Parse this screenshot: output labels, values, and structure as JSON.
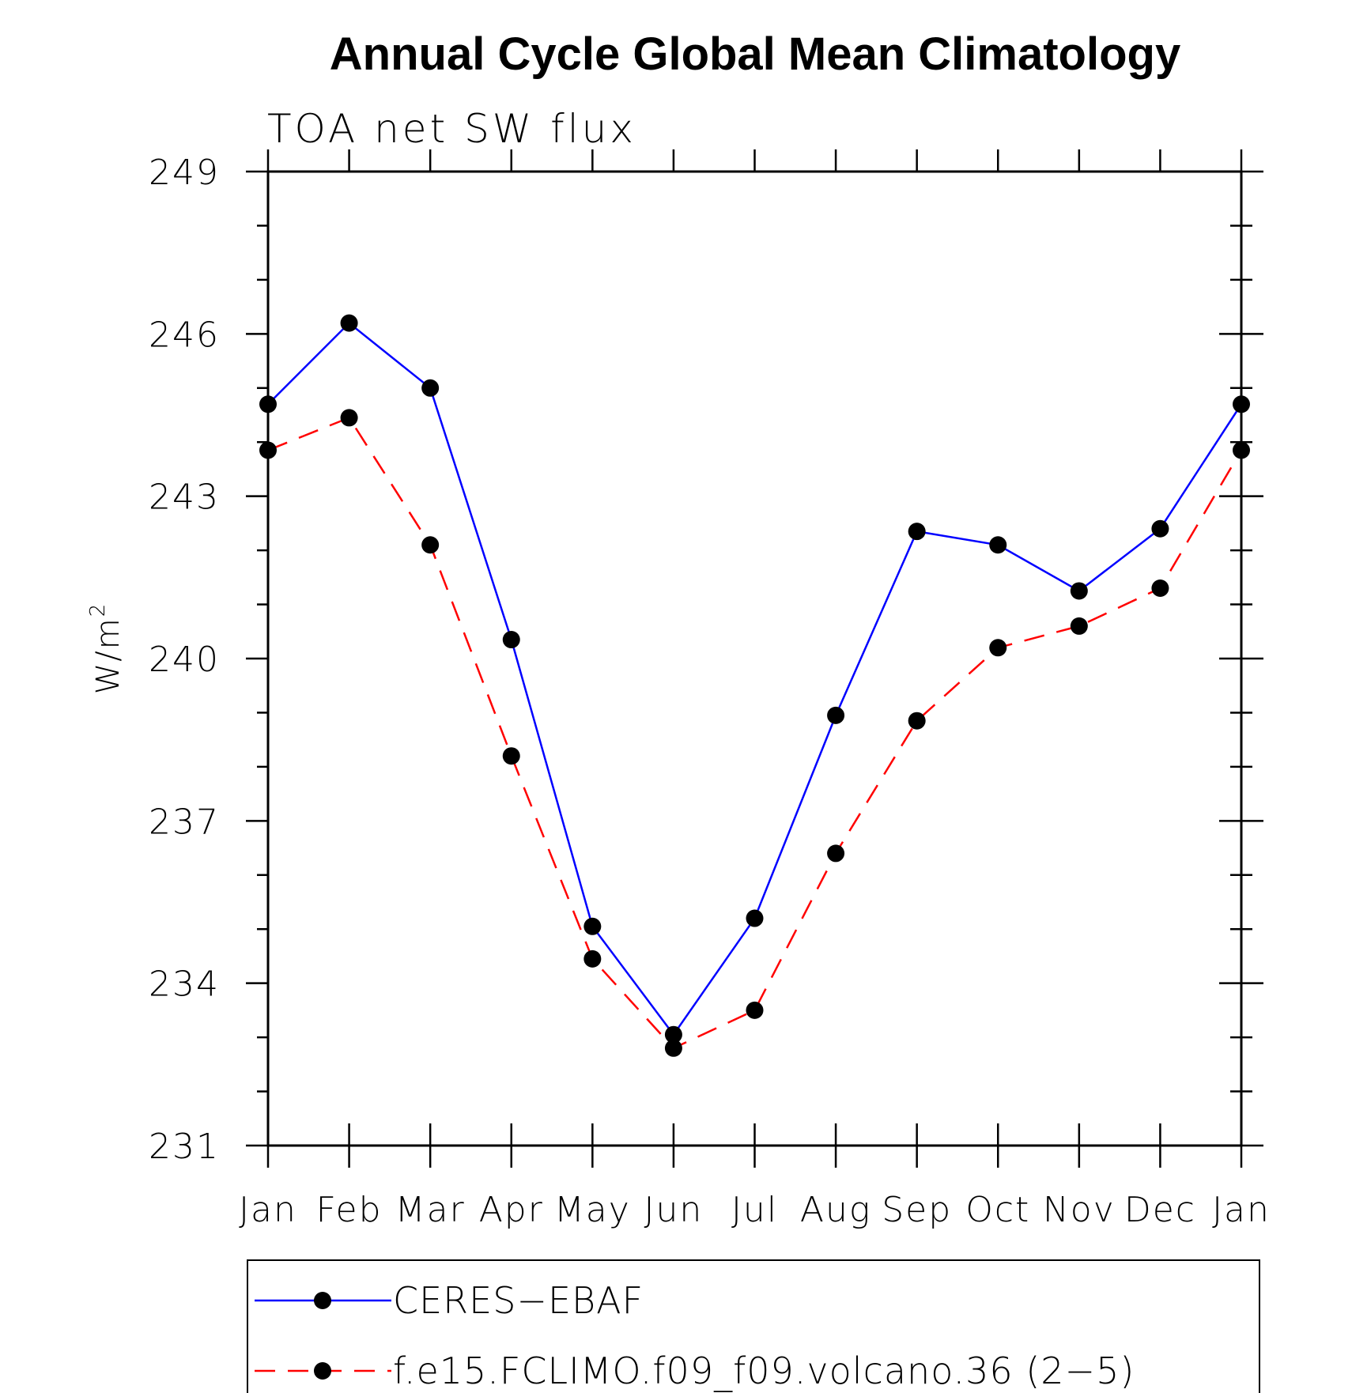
{
  "chart_data": {
    "type": "line",
    "title": "Annual Cycle Global Mean Climatology",
    "subtitle": "TOA net SW flux",
    "xlabel": "",
    "ylabel": "W/m",
    "ylabel_superscript": "2",
    "categories": [
      "Jan",
      "Feb",
      "Mar",
      "Apr",
      "May",
      "Jun",
      "Jul",
      "Aug",
      "Sep",
      "Oct",
      "Nov",
      "Dec",
      "Jan"
    ],
    "ylim": [
      231,
      249
    ],
    "yticks": [
      "231",
      "234",
      "237",
      "240",
      "243",
      "246",
      "249"
    ],
    "grid": false,
    "legend_position": "bottom",
    "series": [
      {
        "name": "CERES−EBAF",
        "color": "#0000ff",
        "line_style": "solid",
        "marker": "filled-circle",
        "values": [
          244.7,
          246.2,
          245.0,
          240.35,
          235.05,
          233.05,
          235.2,
          238.95,
          242.35,
          242.1,
          241.25,
          242.4,
          244.7
        ]
      },
      {
        "name": "f.e15.FCLIMO.f09_f09.volcano.36 (2−5)",
        "color": "#ff0000",
        "line_style": "dashed",
        "marker": "filled-circle",
        "values": [
          243.85,
          244.45,
          242.1,
          238.2,
          234.45,
          232.8,
          233.5,
          236.4,
          238.85,
          240.2,
          240.6,
          241.3,
          243.85
        ]
      }
    ]
  }
}
